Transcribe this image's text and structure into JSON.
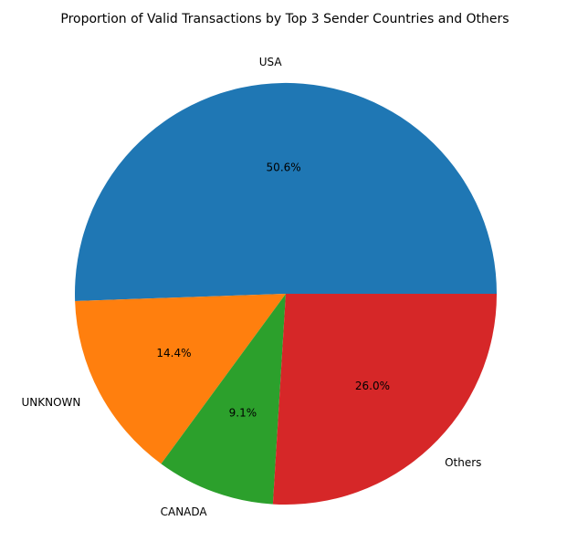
{
  "chart_data": {
    "type": "pie",
    "title": "Proportion of Valid Transactions by Top 3 Sender Countries and Others",
    "start_angle_deg": 0,
    "direction": "counterclockwise",
    "slices": [
      {
        "label": "USA",
        "pct_label": "50.6%",
        "value": 50.6,
        "color": "#1f77b4"
      },
      {
        "label": "UNKNOWN",
        "pct_label": "14.4%",
        "value": 14.4,
        "color": "#ff7f0e"
      },
      {
        "label": "CANADA",
        "pct_label": "9.1%",
        "value": 9.1,
        "color": "#2ca02c"
      },
      {
        "label": "Others",
        "pct_label": "26.0%",
        "value": 26.0,
        "color": "#d62728"
      }
    ]
  }
}
